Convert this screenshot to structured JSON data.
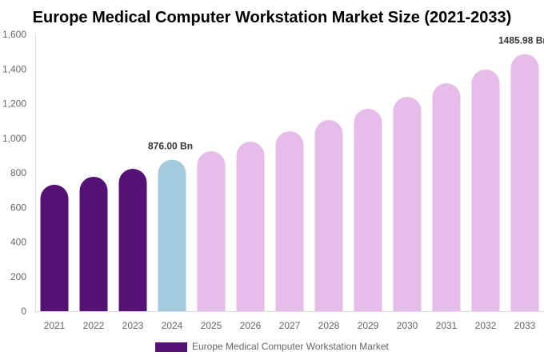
{
  "chart_data": {
    "type": "bar",
    "title": "Europe Medical Computer Workstation Market Size (2021-2033)",
    "xlabel": "",
    "ylabel": "",
    "ylim": [
      0,
      1600
    ],
    "yticks": [
      0,
      200,
      400,
      600,
      800,
      1000,
      1200,
      1400,
      1600
    ],
    "ytick_labels": [
      "0",
      "200",
      "400",
      "600",
      "800",
      "1,000",
      "1,200",
      "1,400",
      "1,600"
    ],
    "grid": false,
    "categories": [
      "2021",
      "2022",
      "2023",
      "2024",
      "2025",
      "2026",
      "2027",
      "2028",
      "2029",
      "2030",
      "2031",
      "2032",
      "2033"
    ],
    "series": [
      {
        "name": "Europe Medical Computer Workstation Market",
        "values": [
          731,
          777,
          823,
          876,
          925,
          980,
          1040,
          1105,
          1170,
          1239,
          1318,
          1397,
          1485.98
        ]
      }
    ],
    "bar_colors": [
      "#541275",
      "#541275",
      "#541275",
      "#a3cadd",
      "#e6bde8",
      "#e6bde8",
      "#e6bde8",
      "#e6bde8",
      "#e6bde8",
      "#e6bde8",
      "#e6bde8",
      "#e6bde8",
      "#e6bde8"
    ],
    "data_labels": [
      {
        "category": "2024",
        "text": "876.00 Bn"
      },
      {
        "category": "2033",
        "text": "1485.98 Bn"
      }
    ],
    "legend": {
      "position": "bottom",
      "label": "Europe Medical Computer Workstation Market",
      "color": "#541275"
    }
  }
}
